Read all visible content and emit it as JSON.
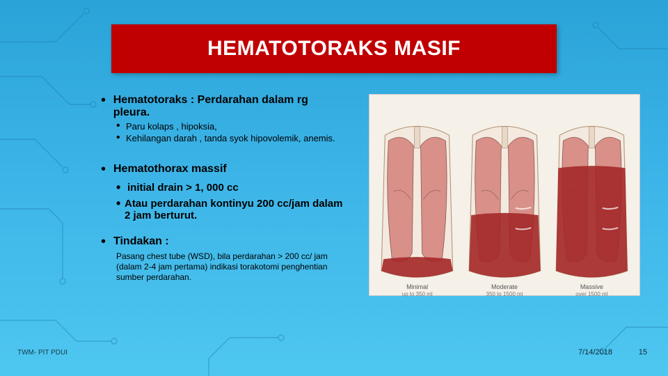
{
  "title": "HEMATOTORAKS MASIF",
  "section1": {
    "heading": "Hematotoraks : Perdarahan dalam rg pleura.",
    "sub1": "Paru kolaps , hipoksia,",
    "sub2": "Kehilangan darah , tanda syok hipovolemik, anemis."
  },
  "section2": {
    "heading": "Hematothorax massif",
    "sub1": "initial drain >  1, 000 cc",
    "sub2": "Atau perdarahan kontinyu  200 cc/jam dalam 2 jam berturut."
  },
  "section3": {
    "heading": "Tindakan :",
    "body": "Pasang chest tube (WSD), bila perdarahan > 200 cc/ jam (dalam 2-4 jam pertama) indikasi torakotomi penghentian sumber perdarahan."
  },
  "image": {
    "background": "#f5f0e8",
    "panels": [
      {
        "label": "Minimal",
        "sublabel": "up to 350 ml",
        "fluid_fill": 0.12,
        "lung_color": "#d89088",
        "fluid_color": "#a52a2a"
      },
      {
        "label": "Moderate",
        "sublabel": "350 to 1500 ml",
        "fluid_fill": 0.4,
        "lung_color": "#d89088",
        "fluid_color": "#a52a2a"
      },
      {
        "label": "Massive",
        "sublabel": "over 1500 ml",
        "fluid_fill": 0.7,
        "lung_color": "#d89088",
        "fluid_color": "#a52a2a"
      }
    ]
  },
  "footer": {
    "left": "TWM- PIT PDUI",
    "date": "7/14/2018",
    "page": "15"
  },
  "colors": {
    "title_bg": "#c00000",
    "title_fg": "#ffffff",
    "bg_top": "#2aa3d8",
    "bg_bottom": "#4ec7f0",
    "circuit": "#1d7fad"
  }
}
